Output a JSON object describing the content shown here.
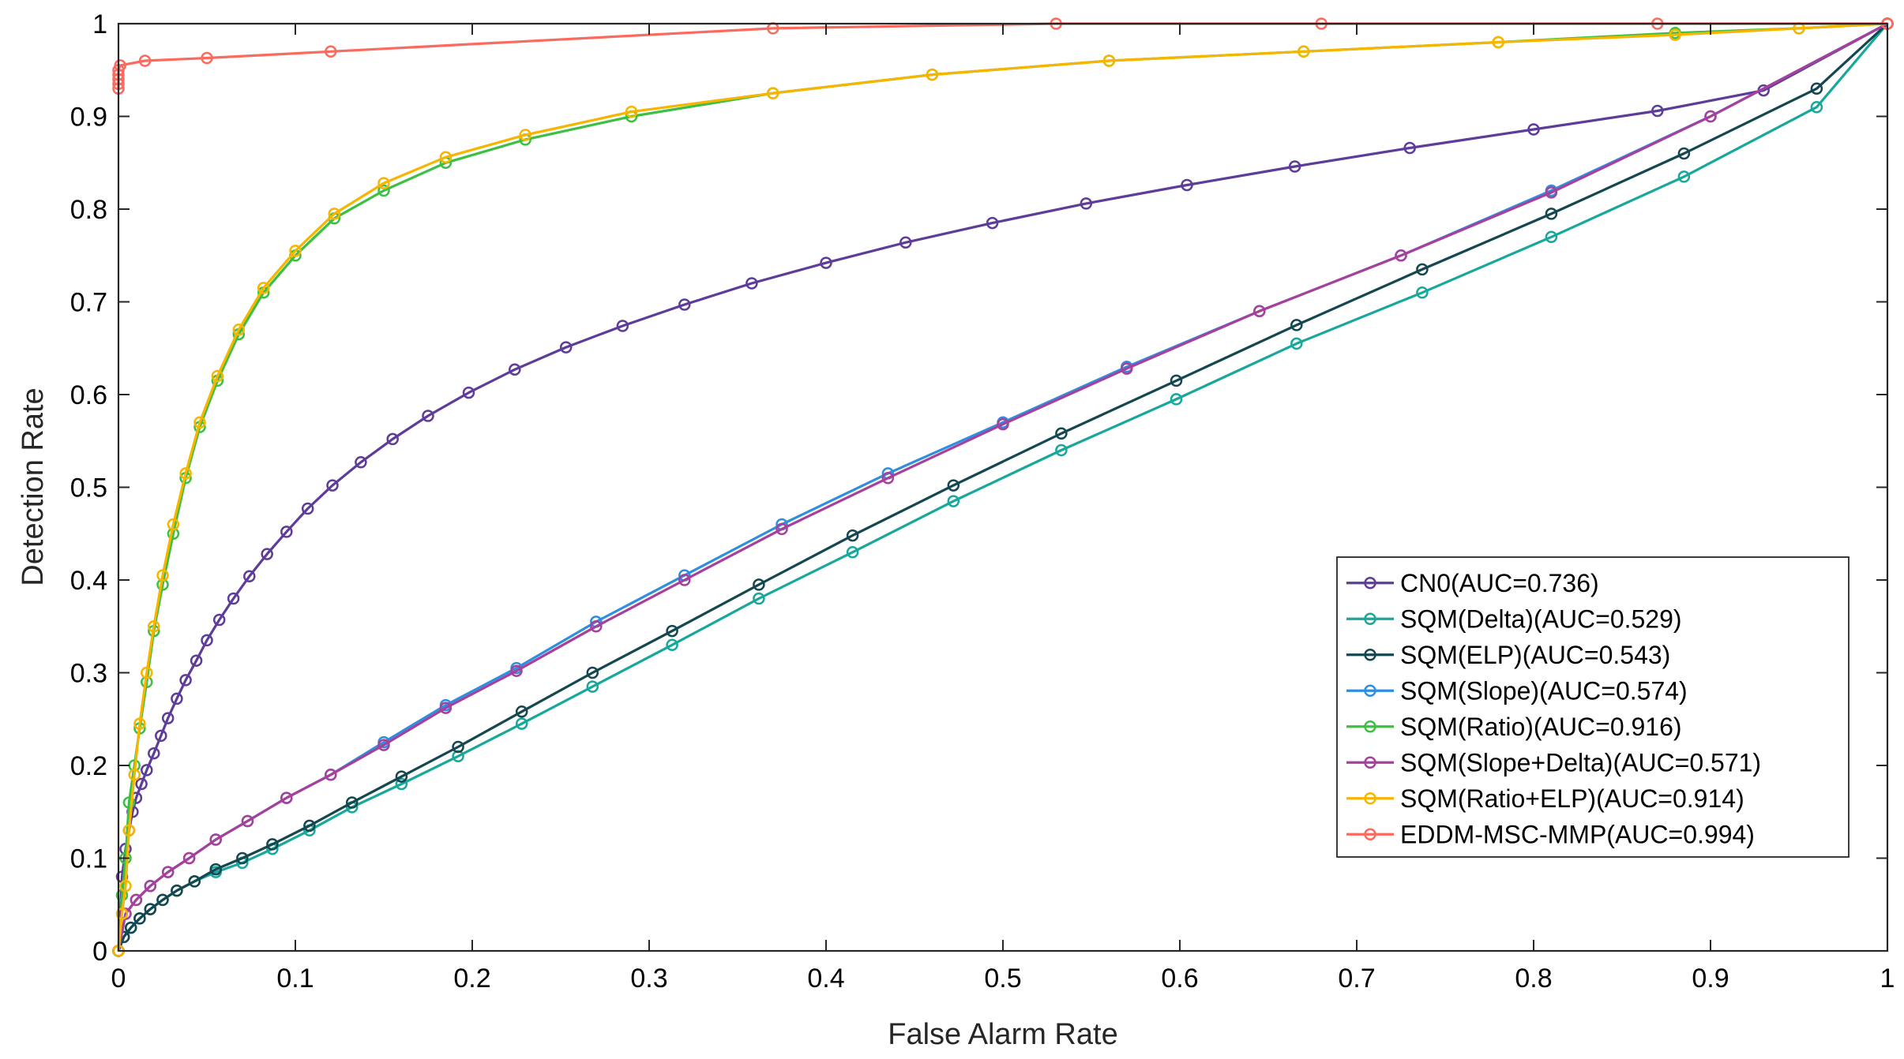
{
  "chart_data": {
    "type": "line",
    "title": "",
    "xlabel": "False Alarm Rate",
    "ylabel": "Detection Rate",
    "xlim": [
      0,
      1
    ],
    "ylim": [
      0,
      1
    ],
    "xticks": [
      0,
      0.1,
      0.2,
      0.3,
      0.4,
      0.5,
      0.6,
      0.7,
      0.8,
      0.9,
      1
    ],
    "yticks": [
      0,
      0.1,
      0.2,
      0.3,
      0.4,
      0.5,
      0.6,
      0.7,
      0.8,
      0.9,
      1
    ],
    "xtick_labels": [
      "0",
      "0.1",
      "0.2",
      "0.3",
      "0.4",
      "0.5",
      "0.6",
      "0.7",
      "0.8",
      "0.9",
      "1"
    ],
    "ytick_labels": [
      "0",
      "0.1",
      "0.2",
      "0.3",
      "0.4",
      "0.5",
      "0.6",
      "0.7",
      "0.8",
      "0.9",
      "1"
    ],
    "grid": false,
    "legend_position": "bottom-right",
    "series": [
      {
        "name": "CN0(AUC=0.736)",
        "color": "#5e3c99",
        "x": [
          0,
          0.002,
          0.004,
          0.006,
          0.008,
          0.01,
          0.013,
          0.016,
          0.02,
          0.024,
          0.028,
          0.033,
          0.038,
          0.044,
          0.05,
          0.057,
          0.065,
          0.074,
          0.084,
          0.095,
          0.107,
          0.121,
          0.137,
          0.155,
          0.175,
          0.198,
          0.224,
          0.253,
          0.285,
          0.32,
          0.358,
          0.4,
          0.445,
          0.494,
          0.547,
          0.604,
          0.665,
          0.73,
          0.8,
          0.87,
          0.93,
          1
        ],
        "y": [
          0,
          0.08,
          0.11,
          0.13,
          0.15,
          0.165,
          0.18,
          0.195,
          0.213,
          0.232,
          0.251,
          0.272,
          0.292,
          0.313,
          0.335,
          0.357,
          0.38,
          0.404,
          0.428,
          0.452,
          0.477,
          0.502,
          0.527,
          0.552,
          0.577,
          0.602,
          0.627,
          0.651,
          0.674,
          0.697,
          0.72,
          0.742,
          0.764,
          0.785,
          0.806,
          0.826,
          0.846,
          0.866,
          0.886,
          0.906,
          0.928,
          1
        ]
      },
      {
        "name": "SQM(Delta)(AUC=0.529)",
        "color": "#17a89b",
        "x": [
          0,
          0.003,
          0.007,
          0.012,
          0.018,
          0.025,
          0.033,
          0.043,
          0.055,
          0.07,
          0.087,
          0.108,
          0.132,
          0.16,
          0.192,
          0.228,
          0.268,
          0.313,
          0.362,
          0.415,
          0.472,
          0.533,
          0.598,
          0.666,
          0.737,
          0.81,
          0.885,
          0.96,
          1
        ],
        "y": [
          0,
          0.015,
          0.025,
          0.035,
          0.045,
          0.055,
          0.065,
          0.075,
          0.085,
          0.095,
          0.11,
          0.13,
          0.155,
          0.18,
          0.21,
          0.245,
          0.285,
          0.33,
          0.38,
          0.43,
          0.485,
          0.54,
          0.595,
          0.655,
          0.71,
          0.77,
          0.835,
          0.91,
          1
        ]
      },
      {
        "name": "SQM(ELP)(AUC=0.543)",
        "color": "#14474f",
        "x": [
          0,
          0.003,
          0.007,
          0.012,
          0.018,
          0.025,
          0.033,
          0.043,
          0.055,
          0.07,
          0.087,
          0.108,
          0.132,
          0.16,
          0.192,
          0.228,
          0.268,
          0.313,
          0.362,
          0.415,
          0.472,
          0.533,
          0.598,
          0.666,
          0.737,
          0.81,
          0.885,
          0.96,
          1
        ],
        "y": [
          0,
          0.015,
          0.025,
          0.035,
          0.045,
          0.055,
          0.065,
          0.075,
          0.088,
          0.1,
          0.115,
          0.135,
          0.16,
          0.188,
          0.22,
          0.258,
          0.3,
          0.345,
          0.395,
          0.448,
          0.502,
          0.558,
          0.615,
          0.675,
          0.735,
          0.795,
          0.86,
          0.93,
          1
        ]
      },
      {
        "name": "SQM(Slope)(AUC=0.574)",
        "color": "#2e8fe0",
        "x": [
          0,
          0.004,
          0.01,
          0.018,
          0.028,
          0.04,
          0.055,
          0.073,
          0.095,
          0.12,
          0.15,
          0.185,
          0.225,
          0.27,
          0.32,
          0.375,
          0.435,
          0.5,
          0.57,
          0.645,
          0.725,
          0.81,
          0.9,
          1
        ],
        "y": [
          0,
          0.04,
          0.055,
          0.07,
          0.085,
          0.1,
          0.12,
          0.14,
          0.165,
          0.19,
          0.225,
          0.265,
          0.305,
          0.355,
          0.405,
          0.46,
          0.515,
          0.57,
          0.63,
          0.69,
          0.75,
          0.82,
          0.9,
          1
        ]
      },
      {
        "name": "SQM(Ratio)(AUC=0.916)",
        "color": "#3cc043",
        "x": [
          0,
          0.002,
          0.004,
          0.006,
          0.009,
          0.012,
          0.016,
          0.02,
          0.025,
          0.031,
          0.038,
          0.046,
          0.056,
          0.068,
          0.082,
          0.1,
          0.122,
          0.15,
          0.185,
          0.23,
          0.29,
          0.37,
          0.46,
          0.56,
          0.67,
          0.78,
          0.88,
          0.95,
          1
        ],
        "y": [
          0,
          0.06,
          0.1,
          0.16,
          0.2,
          0.24,
          0.29,
          0.345,
          0.395,
          0.45,
          0.51,
          0.565,
          0.615,
          0.665,
          0.71,
          0.75,
          0.79,
          0.82,
          0.85,
          0.875,
          0.9,
          0.925,
          0.945,
          0.96,
          0.97,
          0.98,
          0.99,
          0.995,
          1
        ]
      },
      {
        "name": "SQM(Slope+Delta)(AUC=0.571)",
        "color": "#a7409c",
        "x": [
          0,
          0.004,
          0.01,
          0.018,
          0.028,
          0.04,
          0.055,
          0.073,
          0.095,
          0.12,
          0.15,
          0.185,
          0.225,
          0.27,
          0.32,
          0.375,
          0.435,
          0.5,
          0.57,
          0.645,
          0.725,
          0.81,
          0.9,
          1
        ],
        "y": [
          0,
          0.04,
          0.055,
          0.07,
          0.085,
          0.1,
          0.12,
          0.14,
          0.165,
          0.19,
          0.222,
          0.262,
          0.302,
          0.35,
          0.4,
          0.455,
          0.51,
          0.568,
          0.628,
          0.69,
          0.75,
          0.818,
          0.9,
          1
        ]
      },
      {
        "name": "SQM(Ratio+ELP)(AUC=0.914)",
        "color": "#f7b500",
        "x": [
          0,
          0.002,
          0.004,
          0.006,
          0.009,
          0.012,
          0.016,
          0.02,
          0.025,
          0.031,
          0.038,
          0.046,
          0.056,
          0.068,
          0.082,
          0.1,
          0.122,
          0.15,
          0.185,
          0.23,
          0.29,
          0.37,
          0.46,
          0.56,
          0.67,
          0.78,
          0.88,
          0.95,
          1
        ],
        "y": [
          0,
          0.04,
          0.07,
          0.13,
          0.19,
          0.245,
          0.3,
          0.35,
          0.405,
          0.46,
          0.515,
          0.57,
          0.62,
          0.67,
          0.715,
          0.755,
          0.795,
          0.828,
          0.856,
          0.88,
          0.905,
          0.925,
          0.945,
          0.96,
          0.97,
          0.98,
          0.988,
          0.995,
          1
        ]
      },
      {
        "name": "EDDM-MSC-MMP(AUC=0.994)",
        "color": "#fb6a5e",
        "x": [
          0,
          0,
          0,
          0,
          0,
          0.001,
          0.015,
          0.05,
          0.12,
          0.37,
          0.53,
          0.68,
          0.87,
          1
        ],
        "y": [
          0.93,
          0.935,
          0.94,
          0.945,
          0.95,
          0.955,
          0.96,
          0.963,
          0.97,
          0.995,
          1,
          1,
          1,
          1
        ]
      }
    ]
  }
}
